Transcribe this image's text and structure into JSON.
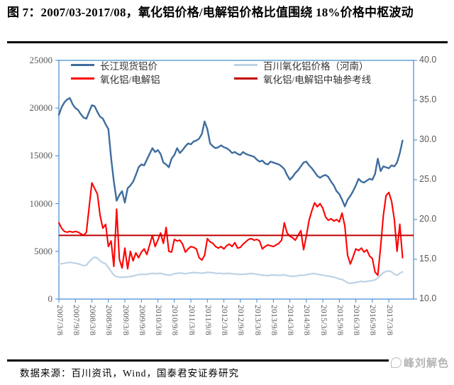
{
  "header": {
    "title": "图 7：2007/03-2017/08，氧化铝价格/电解铝价格比值围绕 18%价格中枢波动"
  },
  "footer": {
    "source": "数据来源：百川资讯，Wind，国泰君安证券研究",
    "watermark": "峰刘解色"
  },
  "style": {
    "axis_color": "#5B9BD5",
    "label_color": "#595959",
    "rule_color": "#000000"
  },
  "chart_data": {
    "type": "line",
    "title": "2007/03-2017/08 氧化铝价格/电解铝价格比值围绕18%价格中枢波动",
    "grid": false,
    "legend_position": "top-inside",
    "x_axis_months": 129,
    "x_tick_labels": [
      "2007/3/8",
      "2007/9/8",
      "2008/3/8",
      "2008/9/8",
      "2009/3/8",
      "2009/9/8",
      "2010/3/8",
      "2010/9/8",
      "2011/3/8",
      "2011/9/8",
      "2012/3/8",
      "2012/9/8",
      "2013/3/8",
      "2013/9/8",
      "2014/3/8",
      "2014/9/8",
      "2015/3/8",
      "2015/9/8",
      "2016/3/8",
      "2016/9/8",
      "2017/3/8"
    ],
    "axes": {
      "left": {
        "min": 0,
        "max": 25000,
        "tick_labels": [
          "0",
          "5000",
          "10000",
          "15000",
          "20000",
          "25000"
        ]
      },
      "right": {
        "min": 10,
        "max": 40,
        "tick_labels": [
          "10.0",
          "15.0",
          "20.0",
          "25.0",
          "30.0",
          "35.0",
          "40.0"
        ]
      }
    },
    "legend": [
      {
        "label": "长江现货铝价",
        "color": "#3E6D9E"
      },
      {
        "label": "氧化铝/电解铝",
        "color": "#FE0000"
      },
      {
        "label": "百川氧化铝价格（河南）",
        "color": "#BCD3E6"
      },
      {
        "label": "氧化铝/电解铝中轴参考线",
        "color": "#C00000"
      }
    ],
    "series": [
      {
        "name": "百川氧化铝价格（河南）",
        "axis": "left",
        "color": "#BCD3E6",
        "width": 2.2,
        "values": [
          3650,
          3700,
          3750,
          3800,
          3850,
          3800,
          3750,
          3700,
          3600,
          3500,
          3550,
          3900,
          4200,
          4400,
          4300,
          4000,
          3800,
          3700,
          3300,
          2900,
          2500,
          2350,
          2300,
          2280,
          2300,
          2320,
          2350,
          2400,
          2500,
          2550,
          2600,
          2580,
          2600,
          2650,
          2700,
          2650,
          2680,
          2700,
          2600,
          2550,
          2500,
          2550,
          2650,
          2700,
          2720,
          2700,
          2650,
          2700,
          2750,
          2780,
          2760,
          2740,
          2700,
          2750,
          2800,
          2780,
          2750,
          2700,
          2680,
          2700,
          2650,
          2680,
          2700,
          2650,
          2630,
          2600,
          2580,
          2600,
          2620,
          2650,
          2680,
          2650,
          2600,
          2550,
          2500,
          2480,
          2450,
          2500,
          2520,
          2500,
          2480,
          2500,
          2550,
          2450,
          2400,
          2380,
          2400,
          2450,
          2500,
          2480,
          2550,
          2600,
          2650,
          2680,
          2600,
          2550,
          2500,
          2450,
          2400,
          2350,
          2300,
          2200,
          2100,
          2050,
          1900,
          1700,
          1650,
          1680,
          1750,
          1800,
          1850,
          1800,
          1850,
          1900,
          1950,
          2000,
          2200,
          2500,
          2750,
          2900,
          2950,
          2850,
          2600,
          2500,
          2700,
          2850
        ]
      },
      {
        "name": "长江现货铝价",
        "axis": "left",
        "color": "#3E6D9E",
        "width": 2.4,
        "values": [
          19300,
          20100,
          20600,
          20900,
          21050,
          20400,
          20000,
          19800,
          19350,
          19000,
          18900,
          19600,
          20300,
          20200,
          19600,
          19100,
          18900,
          18300,
          17800,
          14800,
          12300,
          10300,
          10900,
          11300,
          10100,
          11600,
          11900,
          12300,
          13000,
          13800,
          14100,
          14000,
          14600,
          15200,
          15800,
          15400,
          15600,
          15200,
          14300,
          14100,
          13800,
          14700,
          15100,
          15800,
          15300,
          15600,
          16000,
          16300,
          16200,
          16500,
          16600,
          16800,
          17300,
          18600,
          17800,
          16300,
          16000,
          15800,
          15900,
          16100,
          15900,
          15800,
          15600,
          15300,
          15400,
          15200,
          15100,
          15400,
          15200,
          15100,
          15000,
          14900,
          14600,
          14400,
          14500,
          14200,
          14100,
          14400,
          14300,
          14200,
          14100,
          13900,
          13600,
          13000,
          12500,
          12800,
          13200,
          13500,
          13900,
          14300,
          14400,
          14000,
          13700,
          13300,
          12900,
          12700,
          12900,
          13000,
          12800,
          12300,
          11900,
          11300,
          11000,
          10400,
          9700,
          10400,
          10800,
          11300,
          11900,
          12600,
          12300,
          12200,
          12400,
          12600,
          12500,
          13100,
          14700,
          13400,
          13900,
          13800,
          13700,
          14000,
          13900,
          14300,
          15300,
          16600
        ]
      },
      {
        "name": "氧化铝/电解铝",
        "axis": "right",
        "color": "#FE0000",
        "width": 2.1,
        "values": [
          19.6,
          18.9,
          18.5,
          18.4,
          18.5,
          18.4,
          18.5,
          18.4,
          18.2,
          18.0,
          18.4,
          21.5,
          24.6,
          23.9,
          23.2,
          20.5,
          18.9,
          19.4,
          16.6,
          17.3,
          14.1,
          21.3,
          15.0,
          13.9,
          16.4,
          13.8,
          16.0,
          14.8,
          15.8,
          15.2,
          15.9,
          16.3,
          15.6,
          16.8,
          18.0,
          16.6,
          17.4,
          18.3,
          17.0,
          19.0,
          16.0,
          15.9,
          17.5,
          17.3,
          17.4,
          16.9,
          15.9,
          16.3,
          16.6,
          16.5,
          16.3,
          15.2,
          14.9,
          15.5,
          17.6,
          17.2,
          17.0,
          16.6,
          16.4,
          16.6,
          16.3,
          16.7,
          16.9,
          16.6,
          17.1,
          16.4,
          16.5,
          16.9,
          17.2,
          17.5,
          17.6,
          17.4,
          17.5,
          17.3,
          16.3,
          16.6,
          16.8,
          16.7,
          16.6,
          16.8,
          17.0,
          17.4,
          19.6,
          18.3,
          17.9,
          17.7,
          17.4,
          18.0,
          18.6,
          16.2,
          17.9,
          19.9,
          21.1,
          22.1,
          21.6,
          22.0,
          21.4,
          20.3,
          19.9,
          20.1,
          19.8,
          20.0,
          19.7,
          20.8,
          19.2,
          15.5,
          14.4,
          15.3,
          16.3,
          16.1,
          16.4,
          15.9,
          16.2,
          15.4,
          15.1,
          13.4,
          13.0,
          16.5,
          20.5,
          23.0,
          23.4,
          22.3,
          20.0,
          16.0,
          19.4,
          15.2
        ]
      }
    ],
    "reference_line": {
      "name": "氧化铝/电解铝中轴参考线",
      "axis": "right",
      "value": 18,
      "color": "#C00000",
      "width": 2
    }
  }
}
